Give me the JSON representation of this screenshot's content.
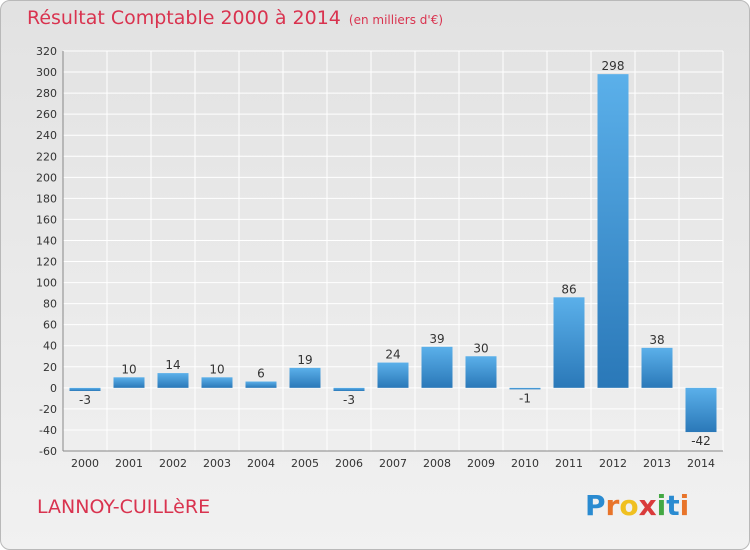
{
  "header": {
    "title": "Résultat Comptable 2000 à 2014",
    "unit": "(en milliers d'€)"
  },
  "footer": {
    "commune": "LANNOY-CUILLèRE"
  },
  "logo": {
    "letters": [
      "P",
      "r",
      "o",
      "x",
      "i",
      "t",
      "i"
    ],
    "colors": [
      "#2a8bd1",
      "#e8742a",
      "#f0c020",
      "#d93b3b",
      "#43a843",
      "#2a8bd1",
      "#e8742a"
    ]
  },
  "colors": {
    "title": "#d9334f",
    "bar_top": "#5bb0ea",
    "bar_bottom": "#2a78b8",
    "grid": "#ffffff"
  },
  "chart_data": {
    "type": "bar",
    "title": "Résultat Comptable 2000 à 2014",
    "xlabel": "",
    "ylabel": "",
    "categories": [
      "2000",
      "2001",
      "2002",
      "2003",
      "2004",
      "2005",
      "2006",
      "2007",
      "2008",
      "2009",
      "2010",
      "2011",
      "2012",
      "2013",
      "2014"
    ],
    "values": [
      -3,
      10,
      14,
      10,
      6,
      19,
      -3,
      24,
      39,
      30,
      -1,
      86,
      298,
      38,
      -42
    ],
    "ylim": [
      -60,
      320
    ],
    "yticks": [
      -60,
      -40,
      -20,
      0,
      20,
      40,
      60,
      80,
      100,
      120,
      140,
      160,
      180,
      200,
      220,
      240,
      260,
      280,
      300,
      320
    ],
    "grid": true
  }
}
